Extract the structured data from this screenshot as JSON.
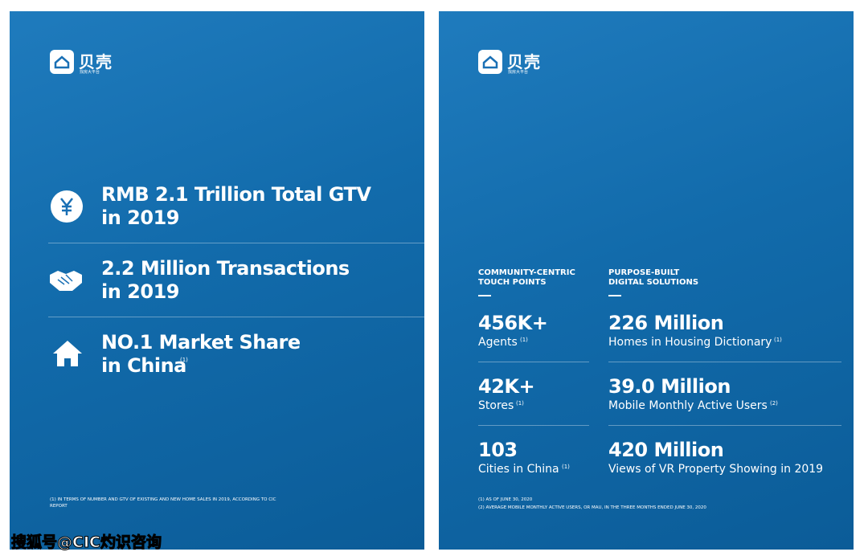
{
  "left": {
    "logo": {
      "name": "贝壳",
      "tagline": "找房大平台"
    },
    "items": [
      {
        "line1": "RMB 2.1 Trillion Total GTV",
        "line2": "in 2019"
      },
      {
        "line1": "2.2 Million Transactions",
        "line2": "in 2019"
      },
      {
        "line1": "NO.1 Market Share",
        "line2": "in China",
        "note": "(1)"
      }
    ],
    "footnote": "(1) IN TERMS OF NUMBER AND GTV OF EXISTING AND NEW HOME SALES IN 2019, ACCORDING TO CIC REPORT"
  },
  "right": {
    "logo": {
      "name": "贝壳",
      "tagline": "找房大平台"
    },
    "columns": [
      {
        "header": "COMMUNITY-CENTRIC TOUCH POINTS",
        "stats": [
          {
            "value": "456K+",
            "label": "Agents",
            "note": "(1)"
          },
          {
            "value": "42K+",
            "label": "Stores",
            "note": "(1)"
          },
          {
            "value": "103",
            "label": "Cities in China",
            "note": "(1)"
          }
        ]
      },
      {
        "header": "PURPOSE-BUILT DIGITAL SOLUTIONS",
        "stats": [
          {
            "value": "226 Million",
            "label": "Homes in Housing Dictionary",
            "note": "(1)"
          },
          {
            "value": "39.0 Million",
            "label": "Mobile Monthly Active Users",
            "note": "(2)"
          },
          {
            "value": "420 Million",
            "label": "Views of VR Property Showing in 2019"
          }
        ]
      }
    ],
    "footnotes": [
      "(1) AS OF JUNE 30, 2020",
      "(2) AVERAGE MOBILE MONTHLY ACTIVE USERS, OR MAU, IN THE THREE MONTHS ENDED JUNE 30, 2020"
    ]
  },
  "watermark": "搜狐号@CIC灼识咨询"
}
